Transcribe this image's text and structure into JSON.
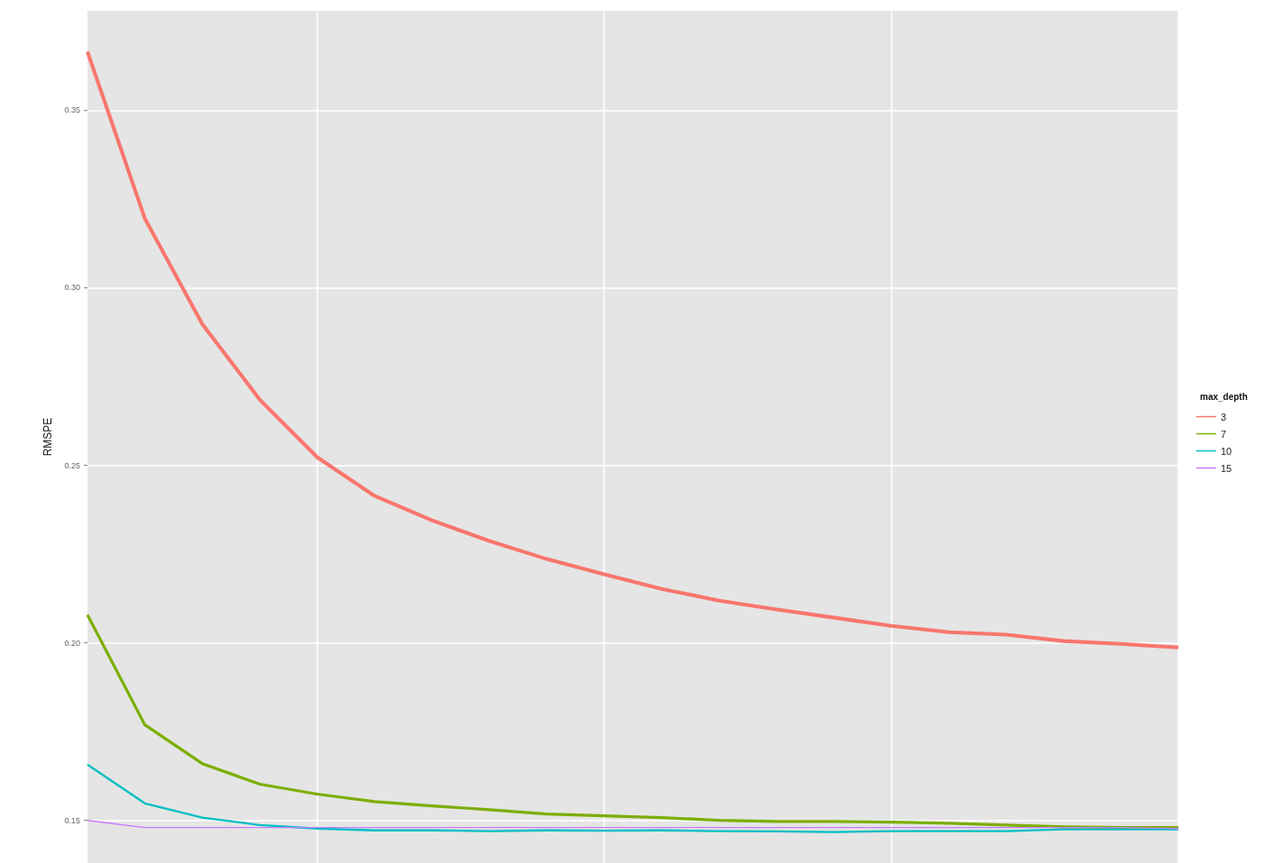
{
  "chart_data": {
    "type": "line",
    "ylabel": "RMSPE",
    "legend_title": "max_depth",
    "legend": "right",
    "grid": true,
    "categories": [
      null,
      null,
      null,
      null,
      null,
      null,
      null,
      null,
      null,
      null,
      null,
      null,
      null,
      null,
      null,
      null,
      null,
      null,
      null,
      null
    ],
    "ylim": [
      0.138,
      0.378
    ],
    "yticks": [
      0.15,
      {
        "value": 0.2,
        "label": "0.20"
      },
      0.25,
      {
        "value": 0.3,
        "label": "0.30"
      },
      0.35
    ],
    "series": [
      {
        "name": "3",
        "color": "#f8766d",
        "values": [
          0.3665,
          0.3195,
          0.2898,
          0.2685,
          0.2523,
          0.2414,
          0.2345,
          0.2287,
          0.2236,
          0.2193,
          0.2152,
          0.2119,
          0.2094,
          0.2071,
          0.2048,
          0.203,
          0.2023,
          0.2005,
          0.1997,
          0.1987
        ]
      },
      {
        "name": "7",
        "color": "#7cae00",
        "values": [
          0.2079,
          0.1769,
          0.166,
          0.1602,
          0.1574,
          0.1553,
          0.1541,
          0.153,
          0.1518,
          0.1513,
          0.1508,
          0.15,
          0.1497,
          0.1497,
          0.1495,
          0.1492,
          0.1487,
          0.1482,
          0.148,
          0.148
        ]
      },
      {
        "name": "10",
        "color": "#00bfc4",
        "values": [
          0.1657,
          0.1548,
          0.1508,
          0.1487,
          0.1477,
          0.1472,
          0.1472,
          0.147,
          0.1472,
          0.1471,
          0.1472,
          0.147,
          0.1469,
          0.1467,
          0.147,
          0.147,
          0.147,
          0.1475,
          0.1475,
          0.1475
        ]
      },
      {
        "name": "15",
        "color": "#c77cff",
        "values": [
          0.15,
          0.148,
          0.148,
          0.148,
          0.148,
          0.148,
          0.148,
          0.148,
          0.148,
          0.148,
          0.148,
          0.148,
          0.148,
          0.148,
          0.148,
          0.148,
          0.148,
          0.148,
          0.148,
          0.1477
        ]
      }
    ]
  }
}
